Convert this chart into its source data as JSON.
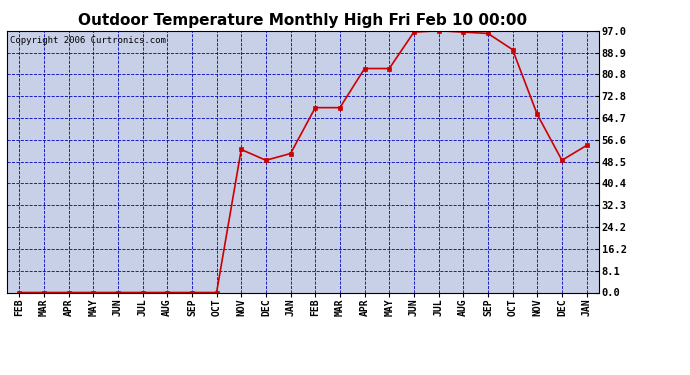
{
  "title": "Outdoor Temperature Monthly High Fri Feb 10 00:00",
  "copyright": "Copyright 2006 Curtronics.com",
  "x_labels": [
    "FEB",
    "MAR",
    "APR",
    "MAY",
    "JUN",
    "JUL",
    "AUG",
    "SEP",
    "OCT",
    "NOV",
    "DEC",
    "JAN",
    "FEB",
    "MAR",
    "APR",
    "MAY",
    "JUN",
    "JUL",
    "AUG",
    "SEP",
    "OCT",
    "NOV",
    "DEC",
    "JAN"
  ],
  "y_values": [
    0.0,
    0.0,
    0.0,
    0.0,
    0.0,
    0.0,
    0.0,
    0.0,
    0.0,
    53.0,
    49.0,
    51.5,
    68.5,
    68.5,
    83.0,
    83.0,
    96.5,
    97.0,
    96.5,
    96.0,
    90.0,
    66.0,
    49.0,
    54.5
  ],
  "y_ticks": [
    0.0,
    8.1,
    16.2,
    24.2,
    32.3,
    40.4,
    48.5,
    56.6,
    64.7,
    72.8,
    80.8,
    88.9,
    97.0
  ],
  "y_min": 0.0,
  "y_max": 97.0,
  "line_color": "#cc0000",
  "marker_color": "#cc0000",
  "plot_bg_color": "#c8d0e8",
  "grid_color": "#0000bb",
  "title_fontsize": 11,
  "copyright_fontsize": 6.5,
  "tick_label_fontsize": 7,
  "ytick_label_fontsize": 7.5
}
